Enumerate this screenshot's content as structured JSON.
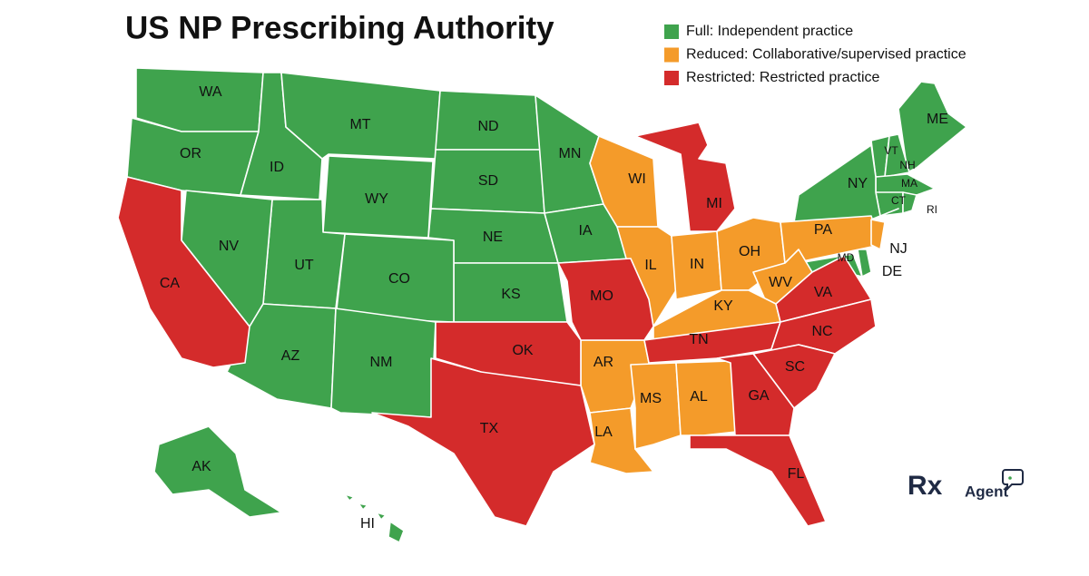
{
  "title": "US NP Prescribing Authority",
  "legend": [
    {
      "label": "Full: Independent practice",
      "color": "#3fa34d",
      "states": [
        "WA",
        "OR",
        "ID",
        "MT",
        "WY",
        "ND",
        "SD",
        "NE",
        "KS",
        "CO",
        "UT",
        "NV",
        "AZ",
        "NM",
        "MN",
        "IA",
        "AK",
        "HI",
        "ME",
        "VT",
        "NH",
        "MA",
        "CT",
        "RI",
        "NY",
        "MD",
        "DE"
      ]
    },
    {
      "label": "Reduced: Collaborative/supervised practice",
      "color": "#f49b2a",
      "states": [
        "WI",
        "IL",
        "IN",
        "OH",
        "PA",
        "NJ",
        "WV",
        "KY",
        "AR",
        "LA",
        "MS",
        "AL"
      ]
    },
    {
      "label": "Restricted: Restricted practice",
      "color": "#d42b2b",
      "states": [
        "CA",
        "MI",
        "MO",
        "OK",
        "TX",
        "TN",
        "VA",
        "NC",
        "SC",
        "GA",
        "FL"
      ]
    }
  ],
  "logo": {
    "mark": "Rx",
    "name": "Agent"
  }
}
